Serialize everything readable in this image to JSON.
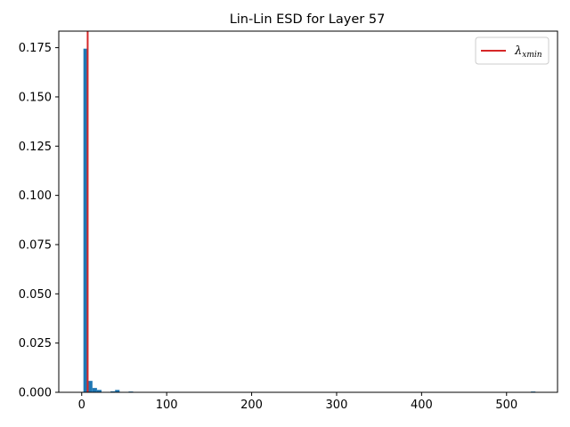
{
  "chart_data": {
    "type": "bar",
    "title": "Lin-Lin ESD for Layer 57",
    "xlabel": "",
    "ylabel": "",
    "xlim": [
      -27,
      560
    ],
    "ylim": [
      0,
      0.1834
    ],
    "x_ticks": [
      0,
      100,
      200,
      300,
      400,
      500
    ],
    "y_ticks": [
      0.0,
      0.025,
      0.05,
      0.075,
      0.1,
      0.125,
      0.15,
      0.175
    ],
    "y_tick_labels": [
      "0.000",
      "0.025",
      "0.050",
      "0.075",
      "0.100",
      "0.125",
      "0.150",
      "0.175"
    ],
    "bar_color": "#1f77b4",
    "bin_width": 5.32,
    "bins": [
      {
        "x0": 2.0,
        "value": 0.1745
      },
      {
        "x0": 7.32,
        "value": 0.0058
      },
      {
        "x0": 12.64,
        "value": 0.0022
      },
      {
        "x0": 17.96,
        "value": 0.0012
      },
      {
        "x0": 33.92,
        "value": 0.0005
      },
      {
        "x0": 39.24,
        "value": 0.0012
      },
      {
        "x0": 55.2,
        "value": 0.0004
      },
      {
        "x0": 528.68,
        "value": 0.0004
      }
    ],
    "vline": {
      "x": 7.0,
      "color": "#d62728",
      "label": "λxmin"
    },
    "legend": {
      "position": "top-right",
      "entries": [
        {
          "label_main": "λ",
          "label_sub": "xmin",
          "color": "#d62728"
        }
      ]
    },
    "grid": false
  }
}
